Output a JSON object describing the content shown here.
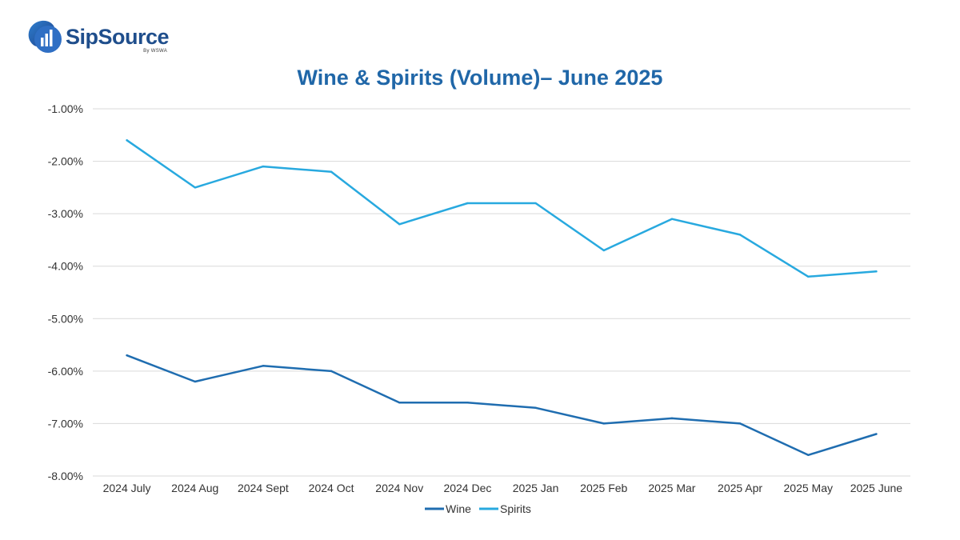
{
  "logo": {
    "name": "SipSource",
    "sub": "By WSWA"
  },
  "colors": {
    "wine": "#1f6db0",
    "spirits": "#28a9df",
    "grid": "#d9d9d9",
    "title": "#2067a8"
  },
  "chart_data": {
    "type": "line",
    "title": "Wine & Spirits (Volume)– June 2025",
    "xlabel": "",
    "ylabel": "",
    "categories": [
      "2024 July",
      "2024 Aug",
      "2024 Sept",
      "2024 Oct",
      "2024 Nov",
      "2024 Dec",
      "2025 Jan",
      "2025 Feb",
      "2025 Mar",
      "2025 Apr",
      "2025 May",
      "2025 June"
    ],
    "series": [
      {
        "name": "Wine",
        "color": "#1f6db0",
        "values": [
          -5.7,
          -6.2,
          -5.9,
          -6.0,
          -6.6,
          -6.6,
          -6.7,
          -7.0,
          -6.9,
          -7.0,
          -7.6,
          -7.2
        ]
      },
      {
        "name": "Spirits",
        "color": "#28a9df",
        "values": [
          -1.6,
          -2.5,
          -2.1,
          -2.2,
          -3.2,
          -2.8,
          -2.8,
          -3.7,
          -3.1,
          -3.4,
          -4.2,
          -4.1
        ]
      }
    ],
    "ylim": [
      -8.0,
      -1.0
    ],
    "yticks": [
      "-1.00%",
      "-2.00%",
      "-3.00%",
      "-4.00%",
      "-5.00%",
      "-6.00%",
      "-7.00%",
      "-8.00%"
    ],
    "ytick_values": [
      -1,
      -2,
      -3,
      -4,
      -5,
      -6,
      -7,
      -8
    ],
    "grid": true,
    "legend": "bottom-center"
  }
}
